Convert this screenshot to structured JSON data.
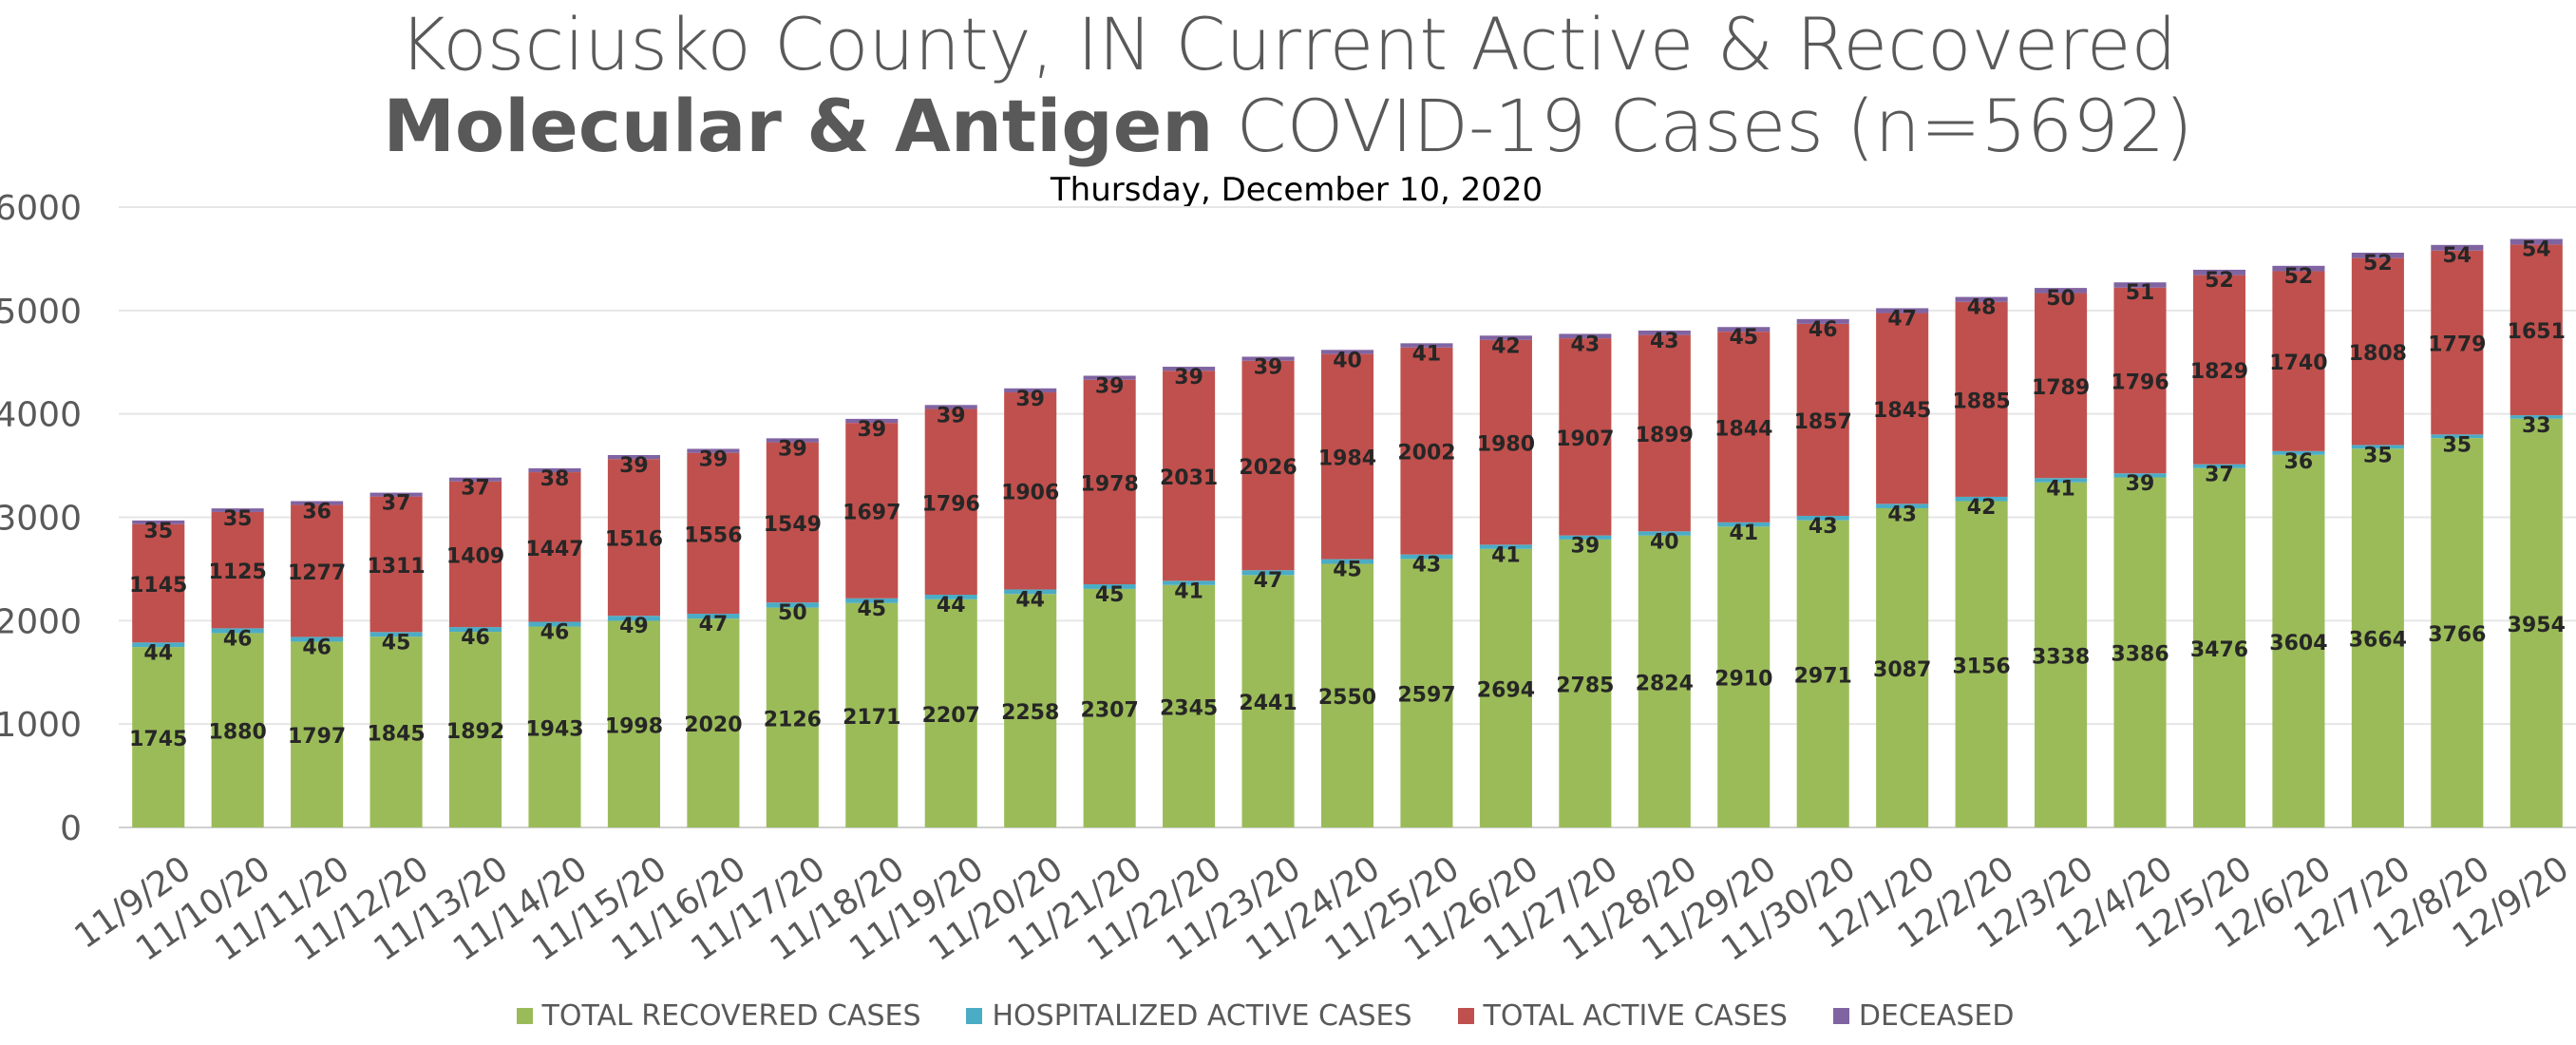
{
  "title": {
    "line1": "Kosciusko County, IN Current Active & Recovered",
    "line2_bold": "Molecular & Antigen",
    "line2_rest": " COVID-19 Cases (n=5692)"
  },
  "subtitle": "Thursday, December 10, 2020",
  "colors": {
    "recovered": "#9bbb59",
    "hospitalized": "#4bacc6",
    "active": "#c0504d",
    "deceased": "#8064a2",
    "grid": "#e6e6e6",
    "axis_text": "#595959",
    "label_text": "#262626"
  },
  "legend": [
    {
      "key": "recovered",
      "label": "TOTAL RECOVERED CASES"
    },
    {
      "key": "hospitalized",
      "label": "HOSPITALIZED ACTIVE CASES"
    },
    {
      "key": "active",
      "label": "TOTAL ACTIVE CASES"
    },
    {
      "key": "deceased",
      "label": "DECEASED"
    }
  ],
  "chart_data": {
    "type": "bar",
    "stacked": true,
    "title": "Kosciusko County, IN Current Active & Recovered Molecular & Antigen COVID-19 Cases (n=5692)",
    "subtitle": "Thursday, December 10, 2020",
    "xlabel": "",
    "ylabel": "",
    "ylim": [
      0,
      6000
    ],
    "yticks": [
      0,
      1000,
      2000,
      3000,
      4000,
      5000,
      6000
    ],
    "grid": true,
    "legend_position": "bottom",
    "categories": [
      "11/9/20",
      "11/10/20",
      "11/11/20",
      "11/12/20",
      "11/13/20",
      "11/14/20",
      "11/15/20",
      "11/16/20",
      "11/17/20",
      "11/18/20",
      "11/19/20",
      "11/20/20",
      "11/21/20",
      "11/22/20",
      "11/23/20",
      "11/24/20",
      "11/25/20",
      "11/26/20",
      "11/27/20",
      "11/28/20",
      "11/29/20",
      "11/30/20",
      "12/1/20",
      "12/2/20",
      "12/3/20",
      "12/4/20",
      "12/5/20",
      "12/6/20",
      "12/7/20",
      "12/8/20",
      "12/9/20"
    ],
    "series": [
      {
        "name": "TOTAL RECOVERED CASES",
        "key": "recovered",
        "values": [
          1745,
          1880,
          1797,
          1845,
          1892,
          1943,
          1998,
          2020,
          2126,
          2171,
          2207,
          2258,
          2307,
          2345,
          2441,
          2550,
          2597,
          2694,
          2785,
          2824,
          2910,
          2971,
          3087,
          3156,
          3338,
          3386,
          3476,
          3604,
          3664,
          3766,
          3954
        ]
      },
      {
        "name": "HOSPITALIZED ACTIVE CASES",
        "key": "hospitalized",
        "values": [
          44,
          46,
          46,
          45,
          46,
          46,
          49,
          47,
          50,
          45,
          44,
          44,
          45,
          41,
          47,
          45,
          43,
          41,
          39,
          40,
          41,
          43,
          43,
          42,
          41,
          39,
          37,
          36,
          35,
          35,
          33
        ]
      },
      {
        "name": "TOTAL ACTIVE CASES",
        "key": "active",
        "values": [
          1145,
          1125,
          1277,
          1311,
          1409,
          1447,
          1516,
          1556,
          1549,
          1697,
          1796,
          1906,
          1978,
          2031,
          2026,
          1984,
          2002,
          1980,
          1907,
          1899,
          1844,
          1857,
          1845,
          1885,
          1789,
          1796,
          1829,
          1740,
          1808,
          1779,
          1651
        ]
      },
      {
        "name": "DECEASED",
        "key": "deceased",
        "values": [
          35,
          35,
          36,
          37,
          37,
          38,
          39,
          39,
          39,
          39,
          39,
          39,
          39,
          39,
          39,
          40,
          41,
          42,
          43,
          43,
          45,
          46,
          47,
          48,
          50,
          51,
          52,
          52,
          52,
          54,
          54
        ]
      }
    ]
  }
}
